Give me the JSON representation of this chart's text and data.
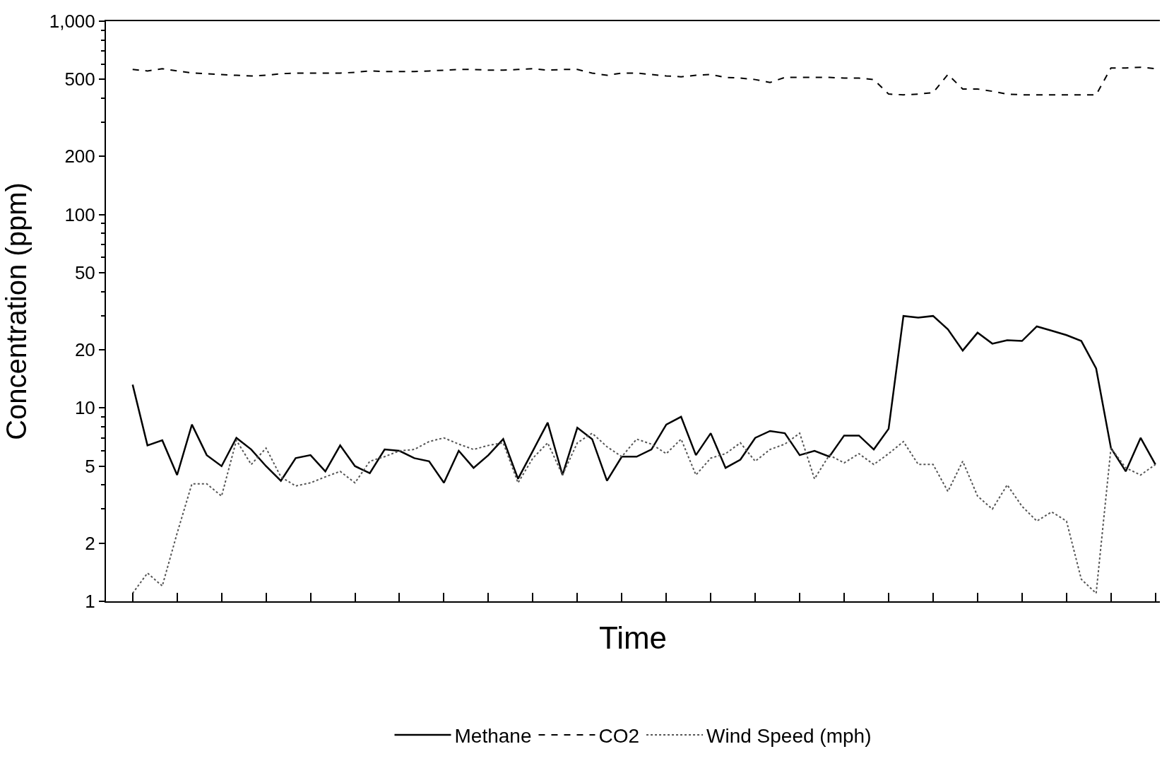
{
  "chart_data": {
    "type": "line",
    "xlabel": "Time",
    "ylabel": "Concentration (ppm)",
    "categories": [
      null,
      null,
      null,
      null,
      null,
      null,
      null,
      null,
      null,
      null,
      null,
      null,
      null,
      null,
      null,
      null,
      null,
      null,
      null,
      null,
      null,
      null,
      null,
      null,
      null,
      null,
      null,
      null,
      null,
      null,
      null,
      null,
      null,
      null,
      null,
      null,
      null,
      null,
      null,
      null,
      null,
      null,
      null,
      null,
      null,
      null,
      null,
      null,
      null,
      null,
      null,
      null,
      null,
      null,
      null,
      null,
      null,
      null,
      null,
      null,
      null,
      null,
      null,
      null,
      null,
      null,
      null,
      null,
      null,
      null
    ],
    "series": [
      {
        "name": "Methane",
        "color": "#000000",
        "line_style": "solid",
        "values": [
          13.2,
          6.4,
          6.8,
          4.5,
          8.2,
          5.7,
          5.0,
          7.0,
          6.1,
          5.0,
          4.2,
          5.5,
          5.7,
          4.7,
          6.4,
          5.0,
          4.6,
          6.1,
          6.0,
          5.5,
          5.3,
          4.1,
          6.0,
          4.9,
          5.7,
          6.9,
          4.3,
          6.0,
          8.4,
          4.5,
          7.9,
          6.9,
          4.2,
          5.6,
          5.6,
          6.1,
          8.2,
          9.0,
          5.7,
          7.4,
          4.9,
          5.4,
          7.0,
          7.6,
          7.4,
          5.7,
          6.0,
          5.6,
          7.2,
          7.2,
          6.1,
          7.8,
          29.9,
          29.3,
          29.9,
          25.5,
          19.8,
          24.5,
          21.5,
          22.4,
          22.2,
          26.4,
          25.1,
          23.8,
          22.2,
          16.0,
          6.2,
          4.7,
          7.0,
          5.1
        ]
      },
      {
        "name": "CO2",
        "color": "#000000",
        "line_style": "dashed",
        "values": [
          563,
          553,
          568,
          553,
          540,
          535,
          530,
          525,
          521,
          525,
          535,
          539,
          539,
          539,
          539,
          544,
          553,
          549,
          549,
          549,
          553,
          558,
          563,
          563,
          558,
          558,
          563,
          568,
          558,
          563,
          563,
          539,
          525,
          539,
          539,
          530,
          521,
          516,
          525,
          530,
          512,
          508,
          499,
          482,
          512,
          512,
          512,
          512,
          508,
          508,
          499,
          420,
          416,
          420,
          427,
          530,
          446,
          446,
          434,
          420,
          416,
          416,
          416,
          416,
          416,
          416,
          573,
          573,
          578,
          568
        ]
      },
      {
        "name": "Wind Speed (mph)",
        "color": "#555555",
        "line_style": "dotted",
        "values": [
          1.1,
          1.4,
          1.2,
          2.25,
          4.05,
          4.05,
          3.5,
          6.8,
          5.1,
          6.2,
          4.4,
          3.95,
          4.1,
          4.4,
          4.7,
          4.1,
          5.3,
          5.6,
          6.0,
          6.1,
          6.7,
          7.0,
          6.5,
          6.1,
          6.4,
          6.6,
          4.1,
          5.5,
          6.6,
          4.5,
          6.6,
          7.4,
          6.3,
          5.6,
          6.9,
          6.5,
          5.8,
          6.9,
          4.5,
          5.5,
          5.8,
          6.6,
          5.3,
          6.1,
          6.5,
          7.4,
          4.3,
          5.7,
          5.2,
          5.8,
          5.1,
          5.8,
          6.7,
          5.1,
          5.1,
          3.7,
          5.3,
          3.5,
          3.0,
          4.0,
          3.1,
          2.6,
          2.9,
          2.6,
          1.3,
          1.1,
          6.2,
          4.9,
          4.5,
          5.1
        ]
      }
    ],
    "log": true,
    "ylim": [
      1,
      1000
    ],
    "yticks": [
      1,
      2,
      5,
      10,
      20,
      50,
      100,
      200,
      500,
      {
        "value": 1000,
        "label": "1,000"
      }
    ],
    "tick_labels": "y",
    "legend": "bottom"
  }
}
